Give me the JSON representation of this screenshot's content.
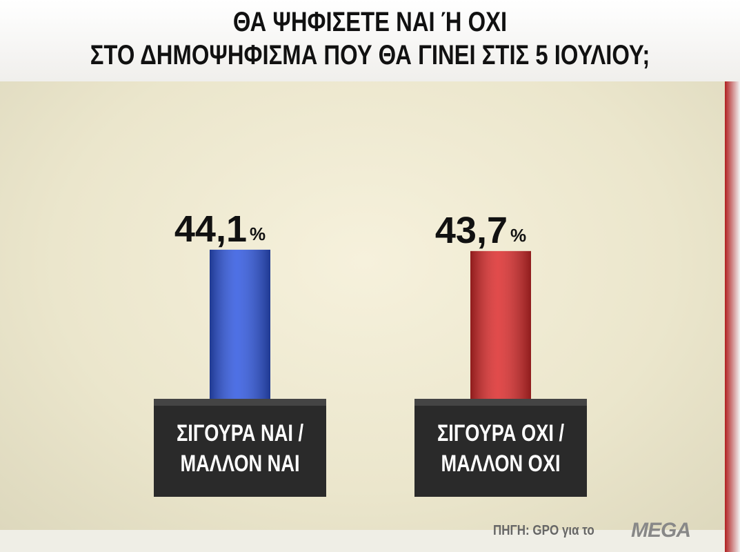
{
  "chart_data": {
    "type": "bar",
    "title": "ΘΑ ΨΗΦΙΣΕΤΕ ΝΑΙ  Ή ΟΧΙ\nΣΤΟ ΔΗΜΟΨΗΦΙΣΜΑ ΠΟΥ ΘΑ ΓΙΝΕΙ ΣΤΙΣ 5 ΙΟΥΛΙΟΥ;",
    "categories": [
      "ΣΙΓΟΥΡΑ ΝΑΙ /\nΜΑΛΛΟΝ ΝΑΙ",
      "ΣΙΓΟΥΡΑ ΟΧΙ /\nΜΑΛΛΟΝ ΟΧΙ"
    ],
    "values": [
      44.1,
      43.7
    ],
    "value_labels": [
      "44,1",
      "43,7"
    ],
    "value_suffix": "%",
    "colors": [
      "#2f57e0",
      "#dc2b2b"
    ],
    "source": "ΠΗΓΗ: GPO για το",
    "logo": "MEGA"
  }
}
